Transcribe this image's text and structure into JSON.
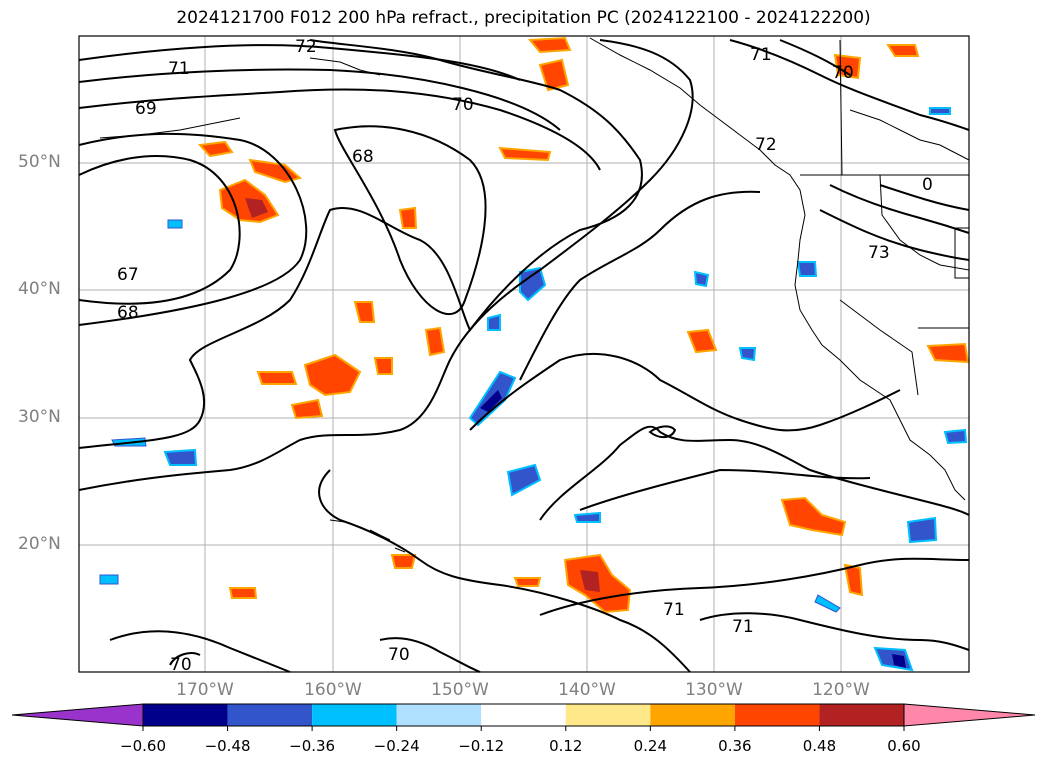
{
  "title": "2024121700 F012 200 hPa refract., precipitation PC (2024122100 - 2024122200)",
  "lat_labels": [
    "50°N",
    "40°N",
    "30°N",
    "20°N"
  ],
  "lon_labels": [
    "170°W",
    "160°W",
    "150°W",
    "140°W",
    "130°W",
    "120°W"
  ],
  "colorbar": {
    "colors": [
      "#9933cc",
      "#00008b",
      "#3355cc",
      "#00bfff",
      "#b0e0ff",
      "#ffffff",
      "#ffe88a",
      "#ffa500",
      "#ff4500",
      "#b22222",
      "#ff88aa"
    ],
    "ticks": [
      "−0.60",
      "−0.48",
      "−0.36",
      "−0.24",
      "−0.12",
      "0.12",
      "0.24",
      "0.36",
      "0.48",
      "0.60"
    ]
  },
  "contour_labels": [
    "71",
    "72",
    "69",
    "70",
    "68",
    "67",
    "68",
    "71",
    "70",
    "72",
    "73",
    "0",
    "70",
    "70",
    "71",
    "71"
  ],
  "map_extent": {
    "lon": [
      -180,
      -110
    ],
    "lat": [
      10,
      60
    ]
  }
}
